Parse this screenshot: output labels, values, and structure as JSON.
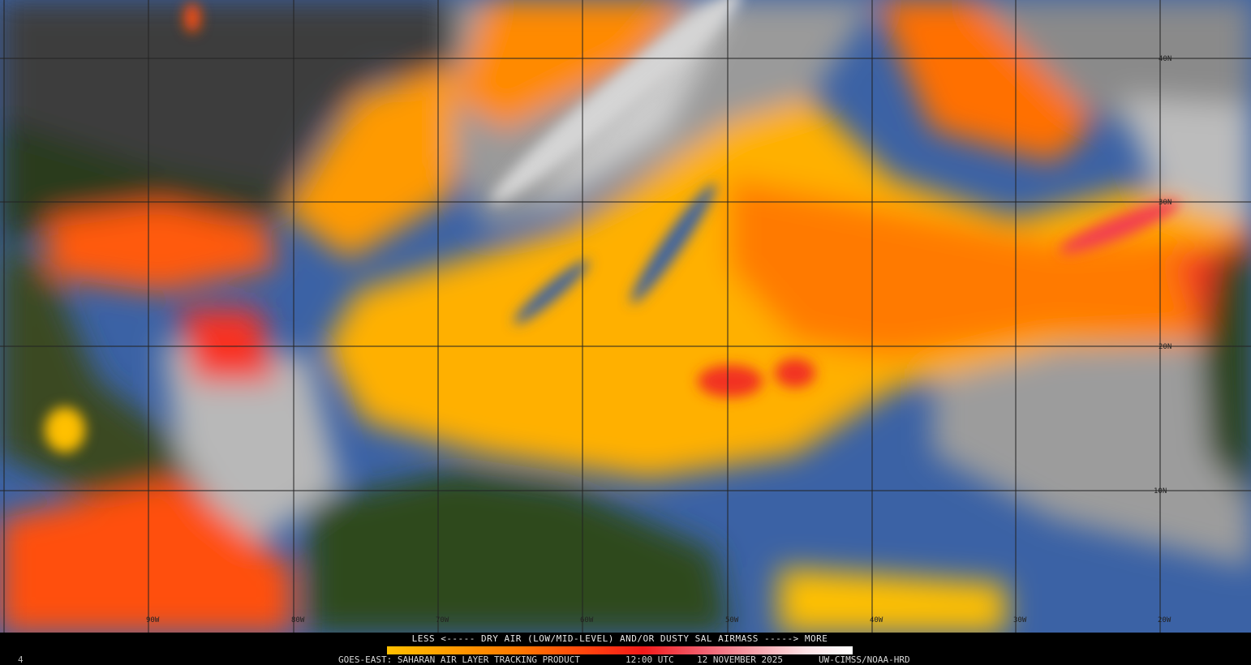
{
  "legend": {
    "title": "LESS <----- DRY AIR (LOW/MID-LEVEL) AND/OR DUSTY SAL AIRMASS -----> MORE",
    "scale_colors": [
      "#ffc000",
      "#ff7a00",
      "#f21a1a",
      "#f8a8b0",
      "#ffffff"
    ]
  },
  "footer": {
    "product": "GOES-EAST: SAHARAN AIR LAYER TRACKING PRODUCT",
    "time": "12:00 UTC",
    "date": "12 NOVEMBER 2025",
    "credit": "UW-CIMSS/NOAA-HRD",
    "corner_mark": "4"
  },
  "grid": {
    "longitudes": [
      "90W",
      "80W",
      "70W",
      "60W",
      "50W",
      "40W",
      "30W",
      "20W"
    ],
    "latitudes": [
      "40N",
      "30N",
      "20N",
      "10N"
    ]
  },
  "colors": {
    "land": "#1f3a12",
    "land_dry": "#5a5a2a",
    "northern_land": "#3a3a3a",
    "ocean_clear": "#3b64a8",
    "clouds": "#c8c8c8",
    "sal_low": "#ffd000",
    "sal_mid": "#ff7000",
    "sal_high": "#f02020"
  }
}
